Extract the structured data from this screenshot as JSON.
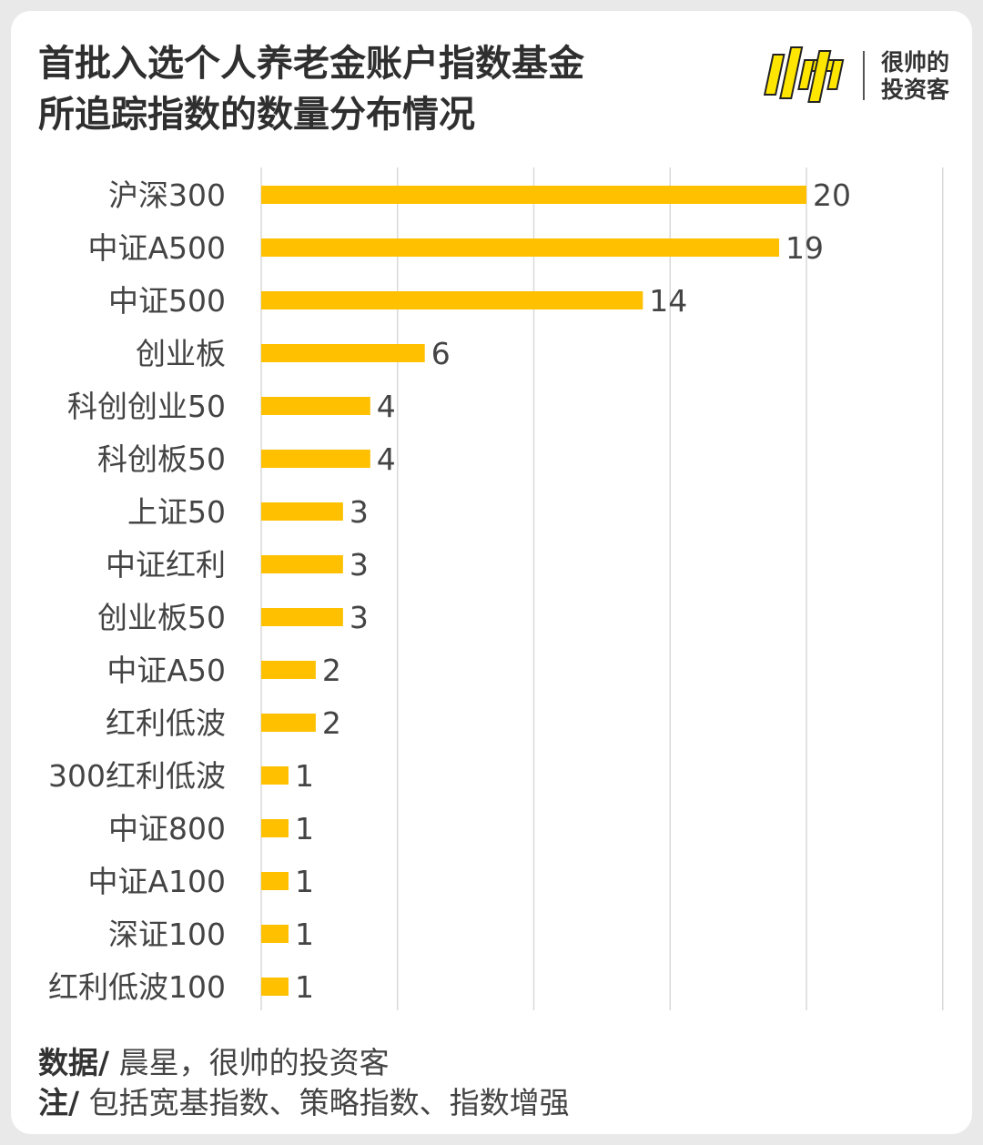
{
  "header": {
    "title_line1": "首批入选个人养老金账户指数基金",
    "title_line2": "所追踪指数的数量分布情况",
    "logo_mark": "帅",
    "logo_text_line1": "很帅的",
    "logo_text_line2": "投资客"
  },
  "colors": {
    "bar": "#FFC000",
    "grid": "#d9d9d9",
    "label": "#444444",
    "logo_yellow": "#FFE600"
  },
  "footer": {
    "source_label": "数据/",
    "source_text": "晨星，很帅的投资客",
    "note_label": "注/",
    "note_text": "包括宽基指数、策略指数、指数增强"
  },
  "chart_data": {
    "type": "bar",
    "orientation": "horizontal",
    "categories": [
      "沪深300",
      "中证A500",
      "中证500",
      "创业板",
      "科创创业50",
      "科创板50",
      "上证50",
      "中证红利",
      "创业板50",
      "中证A50",
      "红利低波",
      "300红利低波",
      "中证800",
      "中证A100",
      "深证100",
      "红利低波100"
    ],
    "values": [
      20,
      19,
      14,
      6,
      4,
      4,
      3,
      3,
      3,
      2,
      2,
      1,
      1,
      1,
      1,
      1
    ],
    "xlim": [
      0,
      25
    ],
    "grid": true,
    "title": "",
    "xlabel": "",
    "ylabel": ""
  }
}
